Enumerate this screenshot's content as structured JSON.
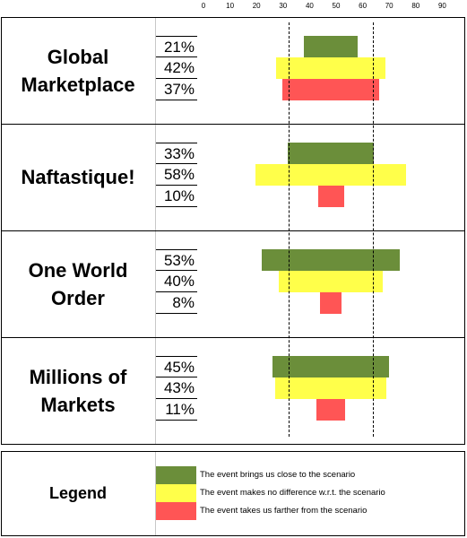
{
  "chart_data": {
    "type": "bar",
    "axis_ticks": [
      "0",
      "10",
      "20",
      "30",
      "40",
      "50",
      "60",
      "70",
      "80",
      "90"
    ],
    "xlim": [
      0,
      90
    ],
    "reference_lines": [
      32,
      64
    ],
    "colors": {
      "closer": "#6b8e3a",
      "no_difference": "#ffff4a",
      "farther": "#ff5555"
    },
    "scenarios": [
      {
        "title_lines": [
          "Global",
          "Marketplace"
        ],
        "rows": [
          {
            "label": "21%",
            "value": 21,
            "color": "#6b8e3a"
          },
          {
            "label": "42%",
            "value": 42,
            "color": "#ffff4a"
          },
          {
            "label": "37%",
            "value": 37,
            "color": "#ff5555"
          }
        ]
      },
      {
        "title_lines": [
          "Naftastique!"
        ],
        "rows": [
          {
            "label": "33%",
            "value": 33,
            "color": "#6b8e3a"
          },
          {
            "label": "58%",
            "value": 58,
            "color": "#ffff4a"
          },
          {
            "label": "10%",
            "value": 10,
            "color": "#ff5555"
          }
        ]
      },
      {
        "title_lines": [
          "One World",
          "Order"
        ],
        "rows": [
          {
            "label": "53%",
            "value": 53,
            "color": "#6b8e3a"
          },
          {
            "label": "40%",
            "value": 40,
            "color": "#ffff4a"
          },
          {
            "label": "8%",
            "value": 8,
            "color": "#ff5555"
          }
        ]
      },
      {
        "title_lines": [
          "Millions of",
          "Markets"
        ],
        "rows": [
          {
            "label": "45%",
            "value": 45,
            "color": "#6b8e3a"
          },
          {
            "label": "43%",
            "value": 43,
            "color": "#ffff4a"
          },
          {
            "label": "11%",
            "value": 11,
            "color": "#ff5555"
          }
        ]
      }
    ]
  },
  "legend": {
    "title": "Legend",
    "items": [
      {
        "color": "#6b8e3a",
        "text": "The event brings us close to the scenario"
      },
      {
        "color": "#ffff4a",
        "text": "The event makes no difference w.r.t. the scenario"
      },
      {
        "color": "#ff5555",
        "text": "The event takes us farther from the scenario"
      }
    ]
  }
}
